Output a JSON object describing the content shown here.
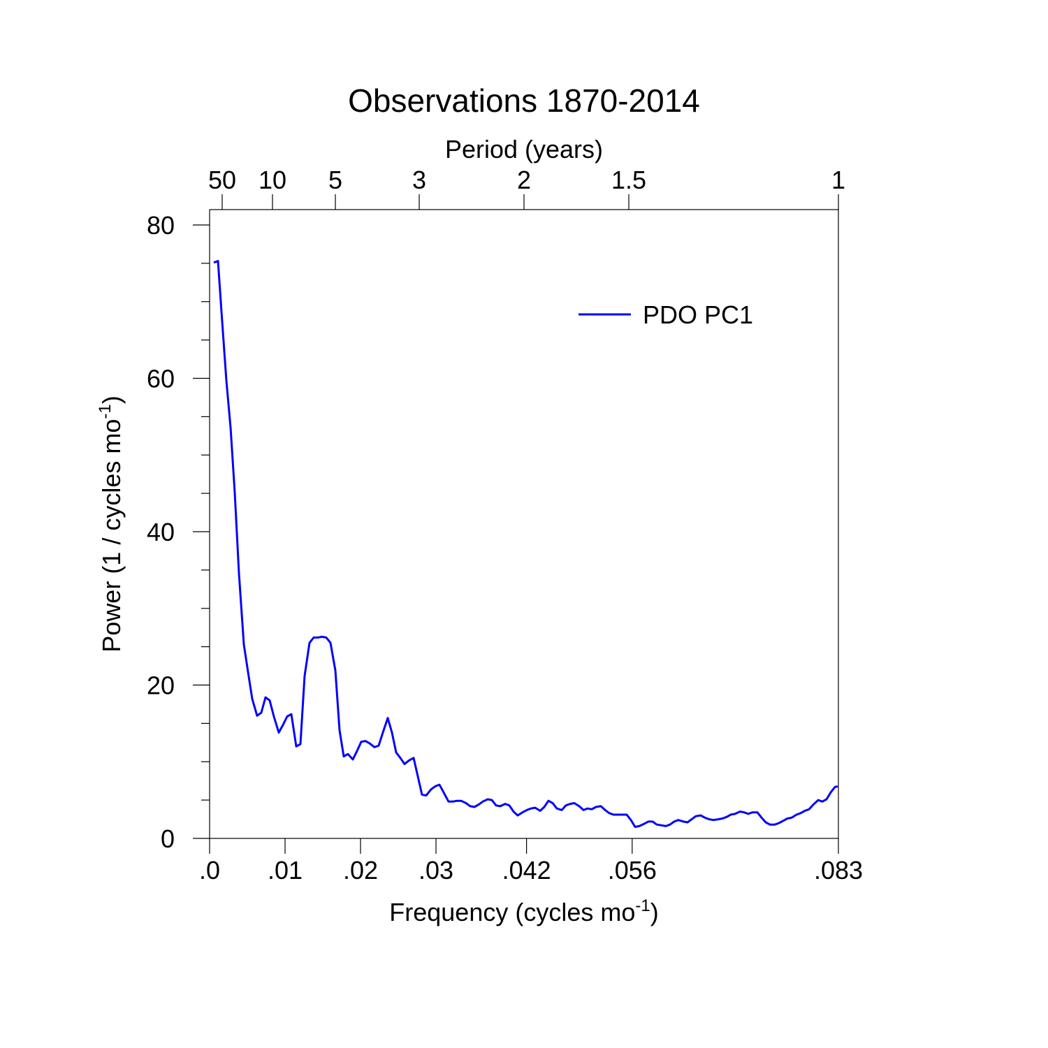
{
  "chart_data": {
    "type": "line",
    "title": "Observations 1870-2014",
    "xlabel": [
      "Frequency (cycles mo",
      "-1",
      ")"
    ],
    "ylabel": [
      "Power (1 / cycles mo",
      "-1",
      ")"
    ],
    "x2label": "Period (years)",
    "xlim": [
      0,
      0.08333
    ],
    "ylim": [
      0,
      80
    ],
    "xticks": [
      {
        "value": 0,
        "label": ".0"
      },
      {
        "value": 0.01,
        "label": ".01"
      },
      {
        "value": 0.02,
        "label": ".02"
      },
      {
        "value": 0.03,
        "label": ".03"
      },
      {
        "value": 0.042,
        "label": ".042"
      },
      {
        "value": 0.056,
        "label": ".056"
      },
      {
        "value": 0.08333,
        "label": ".083"
      }
    ],
    "x2ticks": [
      50,
      10,
      5,
      3,
      2,
      1.5,
      1
    ],
    "yticks": [
      0,
      20,
      40,
      60,
      80
    ],
    "yminorticks": [
      5,
      10,
      15,
      25,
      30,
      35,
      45,
      50,
      55,
      65,
      70,
      75
    ],
    "legend": "upper right",
    "series": [
      {
        "name": "PDO PC1",
        "color": "#0000ff",
        "x": [
          0.00056,
          0.00111,
          0.00167,
          0.00222,
          0.00278,
          0.00333,
          0.00389,
          0.00454,
          0.00509,
          0.00565,
          0.0063,
          0.00685,
          0.00741,
          0.00796,
          0.00852,
          0.00917,
          0.00972,
          0.01028,
          0.01083,
          0.01148,
          0.01204,
          0.01259,
          0.01324,
          0.0138,
          0.01435,
          0.01491,
          0.01546,
          0.01602,
          0.01667,
          0.01722,
          0.01778,
          0.01833,
          0.01898,
          0.01954,
          0.02009,
          0.02065,
          0.0212,
          0.02185,
          0.02241,
          0.02296,
          0.02361,
          0.02417,
          0.02472,
          0.02528,
          0.02583,
          0.02648,
          0.02704,
          0.02759,
          0.02815,
          0.0287,
          0.02935,
          0.02991,
          0.03046,
          0.03102,
          0.03167,
          0.03222,
          0.03278,
          0.03333,
          0.03398,
          0.03454,
          0.03509,
          0.03565,
          0.0362,
          0.03685,
          0.03741,
          0.03796,
          0.03852,
          0.03917,
          0.03972,
          0.04028,
          0.04083,
          0.04148,
          0.04204,
          0.04259,
          0.04315,
          0.0438,
          0.04435,
          0.04491,
          0.04546,
          0.04602,
          0.04667,
          0.04722,
          0.04778,
          0.04833,
          0.04898,
          0.04954,
          0.05009,
          0.05065,
          0.0512,
          0.05185,
          0.05241,
          0.05296,
          0.05352,
          0.05417,
          0.05472,
          0.05528,
          0.05583,
          0.05639,
          0.05694,
          0.05759,
          0.05815,
          0.0587,
          0.05926,
          0.05991,
          0.06046,
          0.06102,
          0.06157,
          0.06213,
          0.06278,
          0.06333,
          0.06389,
          0.06444,
          0.06509,
          0.06565,
          0.0662,
          0.06676,
          0.06741,
          0.06796,
          0.06852,
          0.06907,
          0.06963,
          0.07028,
          0.07083,
          0.07139,
          0.07194,
          0.07259,
          0.07315,
          0.0737,
          0.07426,
          0.07491,
          0.07546,
          0.07602,
          0.07657,
          0.07713,
          0.07778,
          0.07833,
          0.07889,
          0.07944,
          0.08,
          0.08065,
          0.0812,
          0.08176,
          0.08231,
          0.08287,
          0.08324
        ],
        "values": [
          75.1,
          75.3,
          67.4,
          59.7,
          53.6,
          45.1,
          34.6,
          25.3,
          21.7,
          18.2,
          16.0,
          16.4,
          18.4,
          18.0,
          15.9,
          13.8,
          14.8,
          15.9,
          16.2,
          12.0,
          12.3,
          21.2,
          25.5,
          26.2,
          26.2,
          26.3,
          26.2,
          25.5,
          21.9,
          14.1,
          10.7,
          11.0,
          10.3,
          11.4,
          12.6,
          12.7,
          12.4,
          11.9,
          12.1,
          13.8,
          15.7,
          13.8,
          11.2,
          10.5,
          9.7,
          10.2,
          10.5,
          8.1,
          5.7,
          5.6,
          6.4,
          6.8,
          7.0,
          6.0,
          4.8,
          4.8,
          4.9,
          4.9,
          4.6,
          4.2,
          4.1,
          4.4,
          4.8,
          5.1,
          5.0,
          4.3,
          4.2,
          4.5,
          4.3,
          3.5,
          3.0,
          3.4,
          3.7,
          3.9,
          4.0,
          3.6,
          4.1,
          4.9,
          4.6,
          3.9,
          3.7,
          4.3,
          4.5,
          4.6,
          4.2,
          3.7,
          3.9,
          3.8,
          4.1,
          4.2,
          3.7,
          3.3,
          3.1,
          3.1,
          3.1,
          3.1,
          2.4,
          1.5,
          1.6,
          1.9,
          2.2,
          2.2,
          1.8,
          1.7,
          1.6,
          1.8,
          2.2,
          2.4,
          2.2,
          2.1,
          2.5,
          2.9,
          3.0,
          2.7,
          2.5,
          2.4,
          2.5,
          2.6,
          2.8,
          3.1,
          3.2,
          3.5,
          3.4,
          3.2,
          3.4,
          3.4,
          2.7,
          2.1,
          1.8,
          1.8,
          2.0,
          2.3,
          2.6,
          2.7,
          3.1,
          3.3,
          3.6,
          3.8,
          4.4,
          5.0,
          4.8,
          5.1,
          6.0,
          6.7,
          6.8
        ]
      }
    ]
  }
}
